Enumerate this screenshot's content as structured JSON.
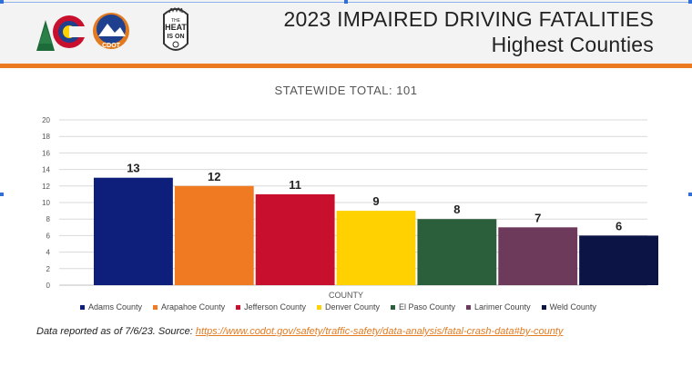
{
  "header": {
    "title_line1": "2023 IMPAIRED DRIVING FATALITIES",
    "title_line2": "Highest Counties",
    "logos": {
      "colorado": "colorado-state-logo",
      "cdot": "CDOT",
      "heat": [
        "THE",
        "HEAT",
        "IS ON"
      ]
    }
  },
  "colors": {
    "accent": "#ec7a21"
  },
  "chart_data": {
    "type": "bar",
    "title": "STATEWIDE TOTAL: 101",
    "xlabel": "COUNTY",
    "ylabel": "",
    "ylim": [
      0,
      20
    ],
    "yticks": [
      0,
      2,
      4,
      6,
      8,
      10,
      12,
      14,
      16,
      18,
      20
    ],
    "grid": true,
    "legend": "bottom",
    "categories": [
      "Adams County",
      "Arapahoe County",
      "Jefferson County",
      "Denver County",
      "El Paso County",
      "Larimer County",
      "Weld County"
    ],
    "values": [
      13,
      12,
      11,
      9,
      8,
      7,
      6
    ],
    "colors": [
      "#0d1f7a",
      "#ef7a21",
      "#c8102e",
      "#ffd100",
      "#2b5f3c",
      "#6e3a5c",
      "#0c1446"
    ]
  },
  "footnote": {
    "text": "Data reported as of 7/6/23. Source: ",
    "link": "https://www.codot.gov/safety/traffic-safety/data-analysis/fatal-crash-data#by-county"
  }
}
